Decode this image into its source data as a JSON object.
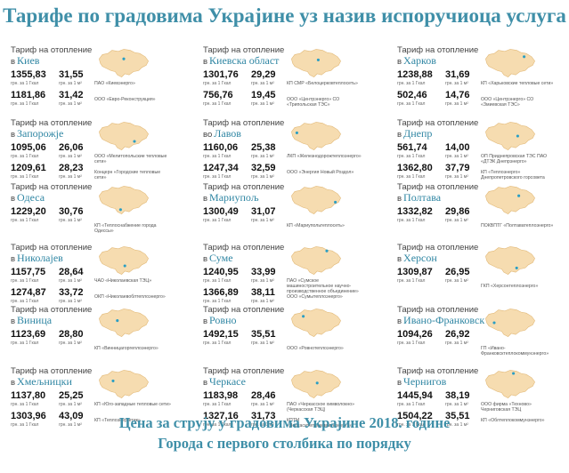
{
  "title": "Тарифе по градовима Украјине уз назив испоручиоца услуга",
  "label_heating": "Тариф на отопление",
  "unit_gcal": "грн. за 1 Гкал",
  "unit_m2": "грн. за 1 м²",
  "cities": [
    {
      "prefix": "в",
      "name": "Киев",
      "rows": [
        {
          "v1": "1355,83",
          "v2": "31,55"
        },
        {
          "v1": "1181,86",
          "v2": "31,42"
        }
      ],
      "providers": [
        "ПАО «Киевэнерго»",
        "ООО «Евро-Реконструкция»"
      ]
    },
    {
      "prefix": "в",
      "name": "Киевска област",
      "rows": [
        {
          "v1": "1301,76",
          "v2": "29,29"
        },
        {
          "v1": "756,76",
          "v2": "19,45"
        }
      ],
      "providers": [
        "КП СМР «Белоцерковтеплосеть»",
        "ООО «Центрэнерго» СО «Трипольская ТЭС»"
      ]
    },
    {
      "prefix": "в",
      "name": "Харков",
      "rows": [
        {
          "v1": "1238,88",
          "v2": "31,69"
        },
        {
          "v1": "502,46",
          "v2": "14,76"
        }
      ],
      "providers": [
        "КП «Харьковские тепловые сети»",
        "ООО «Центрэнерго» СО «Змиевская ТЭС»"
      ]
    },
    {
      "prefix": "в",
      "name": "Запорожје",
      "rows": [
        {
          "v1": "1095,06",
          "v2": "26,06"
        },
        {
          "v1": "1209,61",
          "v2": "28,23"
        }
      ],
      "providers": [
        "ООО «Мелитопольские тепловые сети»",
        "Концерн «Городские тепловые сети»"
      ]
    },
    {
      "prefix": "во",
      "name": "Лавов",
      "rows": [
        {
          "v1": "1160,06",
          "v2": "25,38"
        },
        {
          "v1": "1247,34",
          "v2": "32,59"
        }
      ],
      "providers": [
        "ЛКП «Железнодорожтеплоэнерго»",
        "ООО «Энергия Новый Роздол»"
      ]
    },
    {
      "prefix": "в",
      "name": "Днепр",
      "rows": [
        {
          "v1": "561,74",
          "v2": "14,00"
        },
        {
          "v1": "1362,80",
          "v2": "37,79"
        }
      ],
      "providers": [
        "ОП Приднепровская ТЭС ПАО «ДТЭК Днепрэнерго»",
        "КП «Теплоэнерго» Днепропетровского горсовета"
      ]
    },
    {
      "prefix": "в",
      "name": "Одеса",
      "rows": [
        {
          "v1": "1229,20",
          "v2": "30,76"
        }
      ],
      "providers": [
        "КП «Теплоснабжение города Одессы»"
      ]
    },
    {
      "prefix": "в",
      "name": "Мариупољ",
      "rows": [
        {
          "v1": "1300,49",
          "v2": "31,07"
        }
      ],
      "providers": [
        "КП «Мариупольтеплосеть»"
      ]
    },
    {
      "prefix": "в",
      "name": "Полтава",
      "rows": [
        {
          "v1": "1332,82",
          "v2": "29,86"
        }
      ],
      "providers": [
        "ПОКВПТГ «Полтаватеплоэнерго»"
      ]
    },
    {
      "prefix": "в",
      "name": "Николајев",
      "rows": [
        {
          "v1": "1157,75",
          "v2": "28,64"
        },
        {
          "v1": "1274,87",
          "v2": "33,72"
        }
      ],
      "providers": [
        "ЧАО «Николаевская ТЭЦ»",
        "ОКП «Николаевоблтеплоэнерго»"
      ]
    },
    {
      "prefix": "в",
      "name": "Суме",
      "rows": [
        {
          "v1": "1240,95",
          "v2": "33,99"
        },
        {
          "v1": "1366,89",
          "v2": "38,11"
        }
      ],
      "providers": [
        "ПАО «Сумское машиностроительное научно-производственное объединение»",
        "ООО «Сумытеплоэнерго»"
      ]
    },
    {
      "prefix": "в",
      "name": "Херсон",
      "rows": [
        {
          "v1": "1309,87",
          "v2": "26,95"
        }
      ],
      "providers": [
        "ГКП «Херсонтеплоэнерго»"
      ]
    },
    {
      "prefix": "в",
      "name": "Виница",
      "rows": [
        {
          "v1": "1123,69",
          "v2": "28,80"
        }
      ],
      "providers": [
        "КП «Винницагоргеплоэнерго»"
      ]
    },
    {
      "prefix": "в",
      "name": "Ровно",
      "rows": [
        {
          "v1": "1492,15",
          "v2": "35,51"
        }
      ],
      "providers": [
        "ООО «Ровнотеплоэнерго»"
      ]
    },
    {
      "prefix": "в",
      "name": "Ивано-Франковск",
      "rows": [
        {
          "v1": "1094,26",
          "v2": "26,92"
        }
      ],
      "providers": [
        "ГП «Ивано-Франковсктеплокоммунэнерго»"
      ]
    },
    {
      "prefix": "в",
      "name": "Хмељницки",
      "rows": [
        {
          "v1": "1137,80",
          "v2": "25,25"
        },
        {
          "v1": "1303,96",
          "v2": "43,09"
        }
      ],
      "providers": [
        "КП «Юго-западные тепловые сети»",
        "КП «Теплоэнергетик»"
      ]
    },
    {
      "prefix": "в",
      "name": "Черкасе",
      "rows": [
        {
          "v1": "1183,98",
          "v2": "28,46"
        },
        {
          "v1": "1327,16",
          "v2": "31,73"
        }
      ],
      "providers": [
        "ПАО «Черкасское химволокно» (Черкасская ТЭЦ)",
        "КПТМ «Черкаситеплокоммунэнерго»"
      ]
    },
    {
      "prefix": "в",
      "name": "Чернигов",
      "rows": [
        {
          "v1": "1445,94",
          "v2": "38,19"
        },
        {
          "v1": "1504,22",
          "v2": "35,51"
        }
      ],
      "providers": [
        "ООО фирма «Техново» Черниговская ТЭЦ",
        "КП «Облтеплокоммунэнерго»"
      ]
    }
  ],
  "footer": {
    "line1": "Цена за струју у градовима Украјине 2018. године",
    "line2": "Города с первого столбика по порядку"
  },
  "colors": {
    "accent": "#3f8fa8",
    "map_fill": "#f6dcb0",
    "map_stroke": "#e2b978",
    "dot": "#2a9ec4"
  }
}
